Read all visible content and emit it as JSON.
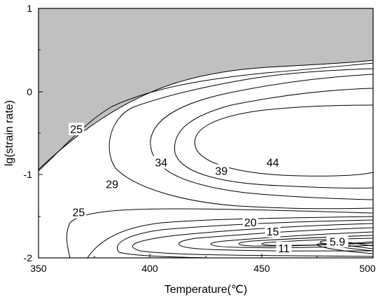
{
  "chart_data": {
    "type": "contour",
    "xlabel": "Temperature(℃)",
    "ylabel": "lg(strain rate)",
    "xlim": [
      350,
      500
    ],
    "ylim": [
      -2,
      1
    ],
    "xticks": [
      "350",
      "400",
      "450",
      "500"
    ],
    "yticks": [
      "-2",
      "-1",
      "0",
      "1"
    ],
    "instability_region_color": "#c0c0c0",
    "contour_labels": [
      {
        "text": "25",
        "x": 367,
        "y": -0.45
      },
      {
        "text": "34",
        "x": 405,
        "y": -0.85
      },
      {
        "text": "39",
        "x": 432,
        "y": -0.95
      },
      {
        "text": "44",
        "x": 455,
        "y": -0.85
      },
      {
        "text": "29",
        "x": 383,
        "y": -1.11
      },
      {
        "text": "25",
        "x": 368,
        "y": -1.45
      },
      {
        "text": "20",
        "x": 445,
        "y": -1.57
      },
      {
        "text": "15",
        "x": 455,
        "y": -1.68
      },
      {
        "text": "11",
        "x": 460,
        "y": -1.88
      },
      {
        "text": "5.9",
        "x": 484,
        "y": -1.8
      }
    ]
  }
}
